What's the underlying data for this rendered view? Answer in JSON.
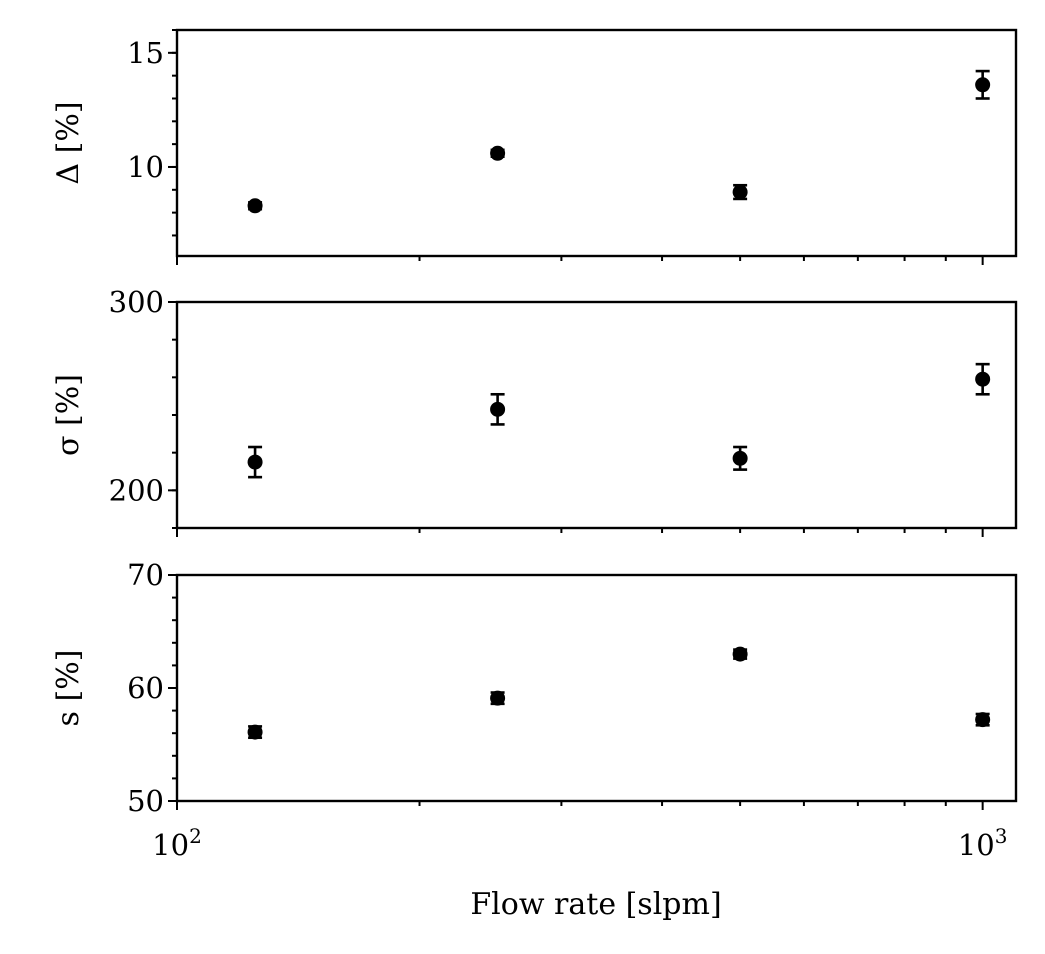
{
  "chart_data": [
    {
      "type": "scatter",
      "xscale": "log",
      "xlim": [
        100,
        1100
      ],
      "ylabel": "Δ [%]",
      "ylim": [
        6.1,
        16
      ],
      "yticks": [
        10,
        15
      ],
      "yminor_step": 1,
      "points": [
        {
          "x": 125,
          "y": 8.3,
          "err": 0.15
        },
        {
          "x": 250,
          "y": 10.6,
          "err": 0.15
        },
        {
          "x": 500,
          "y": 8.9,
          "err": 0.3
        },
        {
          "x": 1000,
          "y": 13.6,
          "err": 0.6
        }
      ]
    },
    {
      "type": "scatter",
      "xscale": "log",
      "xlim": [
        100,
        1100
      ],
      "ylabel": "σ [%]",
      "ylim": [
        180,
        300
      ],
      "yticks": [
        200,
        300
      ],
      "yminor_step": 20,
      "points": [
        {
          "x": 125,
          "y": 215,
          "err": 8
        },
        {
          "x": 250,
          "y": 243,
          "err": 8
        },
        {
          "x": 500,
          "y": 217,
          "err": 6
        },
        {
          "x": 1000,
          "y": 259,
          "err": 8
        }
      ]
    },
    {
      "type": "scatter",
      "xscale": "log",
      "xlim": [
        100,
        1100
      ],
      "ylabel": "s [%]",
      "ylim": [
        50,
        70
      ],
      "yticks": [
        50,
        60,
        70
      ],
      "yminor_step": 2,
      "xlabel": "Flow rate [slpm]",
      "points": [
        {
          "x": 125,
          "y": 56.1,
          "err": 0.5
        },
        {
          "x": 250,
          "y": 59.1,
          "err": 0.5
        },
        {
          "x": 500,
          "y": 63.0,
          "err": 0.4
        },
        {
          "x": 1000,
          "y": 57.2,
          "err": 0.5
        }
      ]
    }
  ],
  "xtick_labels": [
    {
      "value": 100,
      "base": "10",
      "exp": "2"
    },
    {
      "value": 1000,
      "base": "10",
      "exp": "3"
    }
  ]
}
